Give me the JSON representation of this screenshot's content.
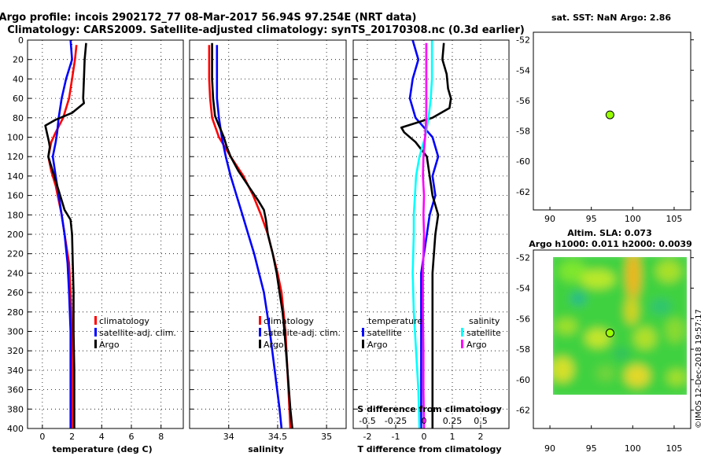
{
  "header": {
    "title_line1": "Argo profile: incois 2902172_77 08-Mar-2017 56.94S 97.254E (NRT data)",
    "title_line2": "Climatology: CARS2009. Satellite-adjusted climatology: synTS_20170308.nc (0.3d earlier)"
  },
  "sst_title": "sat. SST: NaN Argo: 2.86",
  "sla_title1": "Altim. SLA: 0.073",
  "sla_title2": "Argo h1000: 0.011 h2000: 0.0039",
  "watermark": "©IMOS 12-Dec-2018 19:57:17",
  "colors": {
    "climatology": "#ff0000",
    "satellite": "#0000ff",
    "argo": "#000000",
    "sal_sat": "#00ffff",
    "sal_argo": "#ff00ff",
    "marker": "#99ff00"
  },
  "chart_data": [
    {
      "type": "line",
      "name": "temperature",
      "xlabel": "temperature (deg C)",
      "ylabel": "depth",
      "xlim": [
        -1,
        9.5
      ],
      "ylim": [
        400,
        0
      ],
      "xticks": [
        0,
        2,
        4,
        6,
        8
      ],
      "yticks": [
        0,
        20,
        40,
        60,
        80,
        100,
        120,
        140,
        160,
        180,
        200,
        220,
        240,
        260,
        280,
        300,
        320,
        340,
        360,
        380,
        400
      ],
      "legend": [
        "climatology",
        "satellite-adj. clim.",
        "Argo"
      ],
      "series": [
        {
          "name": "climatology",
          "depth": [
            5,
            20,
            40,
            60,
            80,
            95,
            105,
            120,
            135,
            150,
            165,
            180,
            200,
            230,
            260,
            300,
            340,
            380,
            400
          ],
          "values": [
            2.3,
            2.2,
            2.0,
            1.8,
            1.4,
            0.9,
            0.6,
            0.4,
            0.6,
            0.9,
            1.1,
            1.3,
            1.5,
            1.8,
            1.9,
            2.0,
            2.0,
            2.0,
            2.0
          ]
        },
        {
          "name": "satellite-adj. clim.",
          "depth": [
            0,
            20,
            40,
            60,
            80,
            95,
            105,
            120,
            140,
            160,
            180,
            200,
            230,
            260,
            300,
            340,
            380,
            400
          ],
          "values": [
            1.9,
            2.0,
            1.6,
            1.3,
            1.1,
            1.0,
            0.9,
            0.7,
            0.9,
            1.1,
            1.3,
            1.5,
            1.7,
            1.8,
            1.9,
            1.9,
            1.9,
            1.9
          ]
        },
        {
          "name": "Argo",
          "depth": [
            3,
            20,
            40,
            60,
            65,
            75,
            82,
            88,
            95,
            105,
            110,
            120,
            140,
            160,
            175,
            185,
            200,
            230,
            260,
            300,
            340,
            380,
            400
          ],
          "values": [
            2.95,
            2.85,
            2.8,
            2.75,
            2.8,
            2.0,
            0.9,
            0.2,
            0.3,
            0.45,
            0.5,
            0.4,
            0.8,
            1.2,
            1.5,
            1.9,
            2.0,
            2.05,
            2.1,
            2.1,
            2.15,
            2.15,
            2.15
          ]
        }
      ]
    },
    {
      "type": "line",
      "name": "salinity",
      "xlabel": "salinity",
      "ylabel": "depth",
      "xlim": [
        33.6,
        35.2
      ],
      "ylim": [
        400,
        0
      ],
      "xticks": [
        34,
        34.5,
        35
      ],
      "legend": [
        "climatology",
        "satellite-adj. clim.",
        "Argo"
      ],
      "series": [
        {
          "name": "climatology",
          "depth": [
            5,
            20,
            40,
            60,
            80,
            100,
            120,
            140,
            160,
            180,
            200,
            220,
            240,
            260,
            280,
            300,
            340,
            380,
            400
          ],
          "values": [
            33.8,
            33.8,
            33.8,
            33.81,
            33.83,
            33.9,
            34.02,
            34.15,
            34.25,
            34.33,
            34.4,
            34.45,
            34.5,
            34.54,
            34.56,
            34.58,
            34.6,
            34.62,
            34.63
          ]
        },
        {
          "name": "satellite-adj. clim.",
          "depth": [
            5,
            20,
            40,
            60,
            80,
            100,
            120,
            140,
            160,
            180,
            200,
            220,
            240,
            260,
            280,
            300,
            340,
            380,
            400
          ],
          "values": [
            33.88,
            33.88,
            33.88,
            33.88,
            33.9,
            33.93,
            33.97,
            34.02,
            34.08,
            34.14,
            34.2,
            34.26,
            34.31,
            34.36,
            34.39,
            34.42,
            34.47,
            34.52,
            34.54
          ]
        },
        {
          "name": "Argo",
          "depth": [
            3,
            20,
            40,
            60,
            78,
            88,
            95,
            100,
            110,
            120,
            135,
            150,
            165,
            175,
            185,
            200,
            220,
            240,
            260,
            280,
            300,
            340,
            380,
            400
          ],
          "values": [
            33.83,
            33.83,
            33.83,
            33.84,
            33.86,
            33.9,
            33.93,
            33.95,
            33.98,
            34.02,
            34.1,
            34.2,
            34.3,
            34.36,
            34.38,
            34.4,
            34.45,
            34.49,
            34.52,
            34.55,
            34.57,
            34.6,
            34.63,
            34.65
          ]
        }
      ]
    },
    {
      "type": "line",
      "name": "difference",
      "xlabel": "T difference from climatology",
      "xlabel2": "S difference from climatology",
      "xlim": [
        -2.5,
        3
      ],
      "ylim": [
        400,
        0
      ],
      "xticks": [
        -2,
        -1,
        0,
        1,
        2
      ],
      "xticks2_labels": [
        "-0.5",
        "-0.25",
        "0",
        "0.25",
        "0.5"
      ],
      "legend_temperature_title": "temperature",
      "legend_salinity_title": "salinity",
      "legend_temperature": [
        "satellite",
        "Argo"
      ],
      "legend_salinity": [
        "satellite",
        "Argo"
      ],
      "series": [
        {
          "name": "T satellite",
          "depth": [
            0,
            20,
            40,
            60,
            80,
            100,
            110,
            120,
            140,
            160,
            180,
            200,
            240,
            280,
            320,
            360,
            400
          ],
          "values": [
            -0.4,
            -0.2,
            -0.4,
            -0.5,
            -0.3,
            0.3,
            0.4,
            0.5,
            0.3,
            0.4,
            0.2,
            0.1,
            -0.1,
            -0.1,
            -0.1,
            -0.1,
            -0.1
          ]
        },
        {
          "name": "T Argo",
          "depth": [
            3,
            20,
            35,
            50,
            60,
            70,
            80,
            90,
            95,
            105,
            120,
            140,
            160,
            180,
            200,
            240,
            280,
            320,
            360,
            400
          ],
          "values": [
            0.7,
            0.65,
            0.8,
            0.85,
            0.95,
            0.9,
            0.3,
            -0.8,
            -0.7,
            -0.3,
            0.1,
            0.2,
            0.3,
            0.5,
            0.4,
            0.3,
            0.3,
            0.3,
            0.3,
            0.3
          ]
        },
        {
          "name": "S satellite",
          "depth": [
            0,
            20,
            40,
            60,
            80,
            100,
            120,
            140,
            160,
            180,
            200,
            240,
            280,
            320,
            360,
            400
          ],
          "values": [
            0.07,
            0.07,
            0.07,
            0.06,
            0.04,
            0.01,
            -0.04,
            -0.07,
            -0.08,
            -0.09,
            -0.09,
            -0.1,
            -0.09,
            -0.07,
            -0.05,
            -0.04
          ]
        },
        {
          "name": "S Argo",
          "depth": [
            3,
            20,
            40,
            60,
            80,
            100,
            120,
            140,
            160,
            180,
            200,
            240,
            280,
            320,
            360,
            400
          ],
          "values": [
            0.02,
            0.02,
            0.02,
            0.02,
            0.02,
            0.01,
            -0.005,
            -0.01,
            0,
            -0.005,
            0,
            -0.01,
            -0.01,
            -0.005,
            -0.005,
            0
          ]
        }
      ]
    },
    {
      "type": "scatter",
      "name": "sat-sst-map",
      "xlim": [
        88,
        107
      ],
      "ylim": [
        -63.2,
        -51.5
      ],
      "xticks": [
        90,
        95,
        100,
        105
      ],
      "yticks": [
        -52,
        -54,
        -56,
        -58,
        -60,
        -62
      ],
      "points": [
        {
          "x": 97.25,
          "y": -56.94
        }
      ]
    },
    {
      "type": "heatmap",
      "name": "altimetry-sla-map",
      "xlim": [
        88,
        107
      ],
      "ylim": [
        -63.2,
        -51.5
      ],
      "field_xlim": [
        89.5,
        106.5
      ],
      "field_ylim": [
        -60.1,
        -51.2
      ],
      "xticks": [
        90,
        95,
        100,
        105
      ],
      "yticks": [
        -52,
        -54,
        -56,
        -58,
        -60,
        -62
      ],
      "points": [
        {
          "x": 97.25,
          "y": -56.94
        }
      ]
    }
  ]
}
